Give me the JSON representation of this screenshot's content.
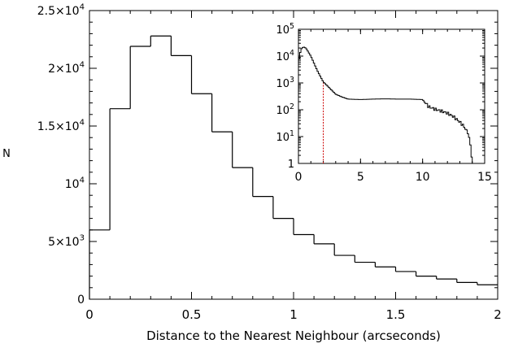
{
  "chart_data": [
    {
      "type": "histogram",
      "xlabel": "Distance to the Nearest Neighbour (arcseconds)",
      "ylabel": "N",
      "xlim": [
        0,
        2
      ],
      "ylim": [
        0,
        25000
      ],
      "xticks": [
        {
          "value": 0,
          "label": "0"
        },
        {
          "value": 0.5,
          "label": "0.5"
        },
        {
          "value": 1,
          "label": "1"
        },
        {
          "value": 1.5,
          "label": "1.5"
        },
        {
          "value": 2,
          "label": "2"
        }
      ],
      "yticks": [
        {
          "value": 0,
          "label": "0"
        },
        {
          "value": 5000,
          "label": "5×10",
          "exp": "3"
        },
        {
          "value": 10000,
          "label": "10",
          "exp": "4"
        },
        {
          "value": 15000,
          "label": "1.5×10",
          "exp": "4"
        },
        {
          "value": 20000,
          "label": "2×10",
          "exp": "4"
        },
        {
          "value": 25000,
          "label": "2.5×10",
          "exp": "4"
        }
      ],
      "bin_edges": [
        0,
        0.1,
        0.2,
        0.3,
        0.4,
        0.5,
        0.6,
        0.7,
        0.8,
        0.9,
        1.0,
        1.1,
        1.2,
        1.3,
        1.4,
        1.5,
        1.6,
        1.7,
        1.8,
        1.9,
        2.0
      ],
      "counts": [
        6000,
        16500,
        21900,
        22800,
        21100,
        17800,
        14500,
        11400,
        8900,
        7000,
        5600,
        4800,
        3800,
        3200,
        2800,
        2400,
        2000,
        1750,
        1450,
        1250
      ],
      "grid": false,
      "line_color": "#000000"
    },
    {
      "type": "histogram",
      "inset": true,
      "xlim": [
        0,
        15
      ],
      "ylim": [
        1,
        100000
      ],
      "yscale": "log",
      "xticks": [
        {
          "value": 0,
          "label": "0"
        },
        {
          "value": 5,
          "label": "5"
        },
        {
          "value": 10,
          "label": "10"
        },
        {
          "value": 15,
          "label": "15"
        }
      ],
      "yticks": [
        {
          "value": 1,
          "label": "1"
        },
        {
          "value": 10,
          "label": "10",
          "exp": "1"
        },
        {
          "value": 100,
          "label": "10",
          "exp": "2"
        },
        {
          "value": 1000,
          "label": "10",
          "exp": "3"
        },
        {
          "value": 10000,
          "label": "10",
          "exp": "4"
        },
        {
          "value": 100000,
          "label": "10",
          "exp": "5"
        }
      ],
      "profile_x": [
        0,
        0.2,
        0.4,
        0.6,
        1.0,
        1.5,
        2.0,
        2.5,
        3.0,
        3.5,
        4.0,
        5.0,
        6.0,
        7.0,
        8.0,
        9.0,
        10.0,
        10.5,
        11.0,
        11.5,
        12.0,
        12.5,
        13.0,
        13.3,
        13.6,
        13.8,
        13.9,
        14.0
      ],
      "profile_y": [
        6000,
        18000,
        22000,
        20000,
        10000,
        3000,
        1100,
        650,
        380,
        300,
        250,
        240,
        250,
        255,
        250,
        250,
        240,
        130,
        105,
        90,
        75,
        55,
        35,
        25,
        15,
        8,
        3,
        1
      ],
      "vline": {
        "x": 2.0,
        "color": "#cc0000"
      },
      "line_color": "#000000"
    }
  ]
}
